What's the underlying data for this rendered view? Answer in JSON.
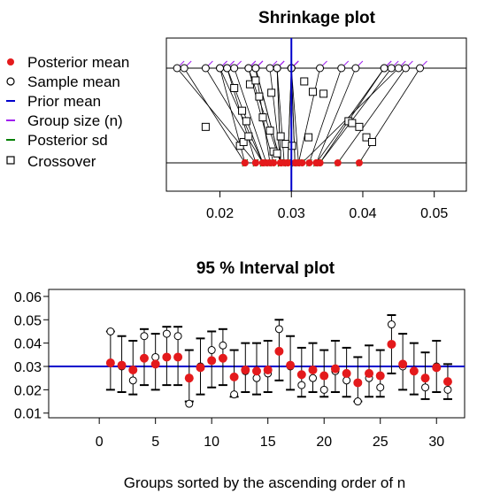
{
  "chart_data": [
    {
      "type": "scatter",
      "title": "Shrinkage plot",
      "xlim": [
        0.0125,
        0.0545
      ],
      "xticks": [
        "0.02",
        "0.03",
        "0.04",
        "0.05"
      ],
      "xtick_values": [
        0.02,
        0.03,
        0.04,
        0.05
      ],
      "prior_mean": 0.03,
      "legend": {
        "placement": "left",
        "items": [
          {
            "label": "Posterior mean",
            "symbol": "dot",
            "color": "#e41a1c"
          },
          {
            "label": "Sample mean",
            "symbol": "circle",
            "color": "#000000"
          },
          {
            "label": "Prior mean",
            "symbol": "line",
            "color": "#0000cc"
          },
          {
            "label": "Group size (n)",
            "symbol": "line",
            "color": "#a020f0"
          },
          {
            "label": "Posterior sd",
            "symbol": "line",
            "color": "#008000"
          },
          {
            "label": "Crossover",
            "symbol": "square",
            "color": "#000000"
          }
        ]
      },
      "sample_means": [
        0.045,
        0.03,
        0.024,
        0.043,
        0.034,
        0.044,
        0.043,
        0.014,
        0.03,
        0.037,
        0.039,
        0.018,
        0.028,
        0.025,
        0.027,
        0.046,
        0.03,
        0.022,
        0.025,
        0.02,
        0.028,
        0.024,
        0.015,
        0.025,
        0.021,
        0.048,
        0.03,
        0.028,
        0.021,
        0.03,
        0.02
      ],
      "posterior_means": [
        0.0315,
        0.0305,
        0.0285,
        0.0335,
        0.031,
        0.034,
        0.034,
        0.025,
        0.0295,
        0.0325,
        0.0335,
        0.026,
        0.0285,
        0.0285,
        0.0285,
        0.0365,
        0.0305,
        0.0265,
        0.0285,
        0.026,
        0.029,
        0.0275,
        0.0235,
        0.027,
        0.026,
        0.0395,
        0.031,
        0.0285,
        0.025,
        0.0295,
        0.0235
      ],
      "crossover": [
        [
          0.018,
          0.62
        ],
        [
          0.022,
          0.21
        ],
        [
          0.0228,
          0.82
        ],
        [
          0.0231,
          0.45
        ],
        [
          0.0233,
          0.78
        ],
        [
          0.0237,
          0.56
        ],
        [
          0.024,
          0.72
        ],
        [
          0.0242,
          0.17
        ],
        [
          0.025,
          0.13
        ],
        [
          0.0255,
          0.3
        ],
        [
          0.026,
          0.52
        ],
        [
          0.027,
          0.66
        ],
        [
          0.0272,
          0.26
        ],
        [
          0.0275,
          0.88
        ],
        [
          0.028,
          0.9
        ],
        [
          0.0285,
          0.72
        ],
        [
          0.0292,
          0.8
        ],
        [
          0.0301,
          0.82
        ],
        [
          0.0318,
          0.14
        ],
        [
          0.0324,
          0.73
        ],
        [
          0.033,
          0.25
        ],
        [
          0.0345,
          0.27
        ],
        [
          0.038,
          0.56
        ],
        [
          0.0385,
          0.58
        ],
        [
          0.0395,
          0.62
        ],
        [
          0.0405,
          0.73
        ],
        [
          0.0413,
          0.78
        ]
      ]
    },
    {
      "type": "scatter",
      "title": "95 % Interval plot",
      "xlabel": "Groups sorted by the ascending order of n",
      "xlim": [
        -4.5,
        32.5
      ],
      "ylim": [
        0.008,
        0.063
      ],
      "xticks": [
        "0",
        "5",
        "10",
        "15",
        "20",
        "25",
        "30"
      ],
      "xtick_values": [
        0,
        5,
        10,
        15,
        20,
        25,
        30
      ],
      "yticks": [
        "0.01",
        "0.02",
        "0.03",
        "0.04",
        "0.05",
        "0.06"
      ],
      "ytick_values": [
        0.01,
        0.02,
        0.03,
        0.04,
        0.05,
        0.06
      ],
      "prior_mean": 0.03,
      "groups": [
        1,
        2,
        3,
        4,
        5,
        6,
        7,
        8,
        9,
        10,
        11,
        12,
        13,
        14,
        15,
        16,
        17,
        18,
        19,
        20,
        21,
        22,
        23,
        24,
        25,
        26,
        27,
        28,
        29,
        30,
        31
      ],
      "posterior_means": [
        0.0315,
        0.0305,
        0.0285,
        0.0335,
        0.031,
        0.034,
        0.034,
        0.025,
        0.0295,
        0.0325,
        0.0335,
        0.0255,
        0.0285,
        0.028,
        0.0285,
        0.0365,
        0.0305,
        0.0265,
        0.0285,
        0.026,
        0.029,
        0.027,
        0.023,
        0.027,
        0.026,
        0.0395,
        0.031,
        0.028,
        0.025,
        0.0295,
        0.0235
      ],
      "sample_means": [
        0.045,
        0.03,
        0.024,
        0.043,
        0.034,
        0.044,
        0.043,
        0.014,
        0.03,
        0.037,
        0.039,
        0.018,
        0.028,
        0.025,
        0.027,
        0.046,
        0.03,
        0.022,
        0.025,
        0.02,
        0.028,
        0.024,
        0.015,
        0.025,
        0.021,
        0.048,
        0.03,
        0.028,
        0.021,
        0.03,
        0.02
      ],
      "lower": [
        0.02,
        0.019,
        0.018,
        0.022,
        0.02,
        0.022,
        0.022,
        0.015,
        0.018,
        0.021,
        0.022,
        0.017,
        0.019,
        0.018,
        0.019,
        0.024,
        0.02,
        0.017,
        0.019,
        0.017,
        0.019,
        0.017,
        0.015,
        0.017,
        0.017,
        0.027,
        0.02,
        0.018,
        0.016,
        0.019,
        0.016
      ],
      "upper": [
        0.045,
        0.043,
        0.041,
        0.046,
        0.044,
        0.047,
        0.047,
        0.037,
        0.042,
        0.045,
        0.046,
        0.037,
        0.04,
        0.04,
        0.041,
        0.05,
        0.043,
        0.038,
        0.04,
        0.037,
        0.041,
        0.038,
        0.034,
        0.039,
        0.037,
        0.052,
        0.044,
        0.04,
        0.036,
        0.041,
        0.031
      ]
    }
  ],
  "colors": {
    "posterior": "#e41a1c",
    "prior": "#0000cc",
    "group_size": "#a020f0",
    "posterior_sd": "#008000"
  }
}
